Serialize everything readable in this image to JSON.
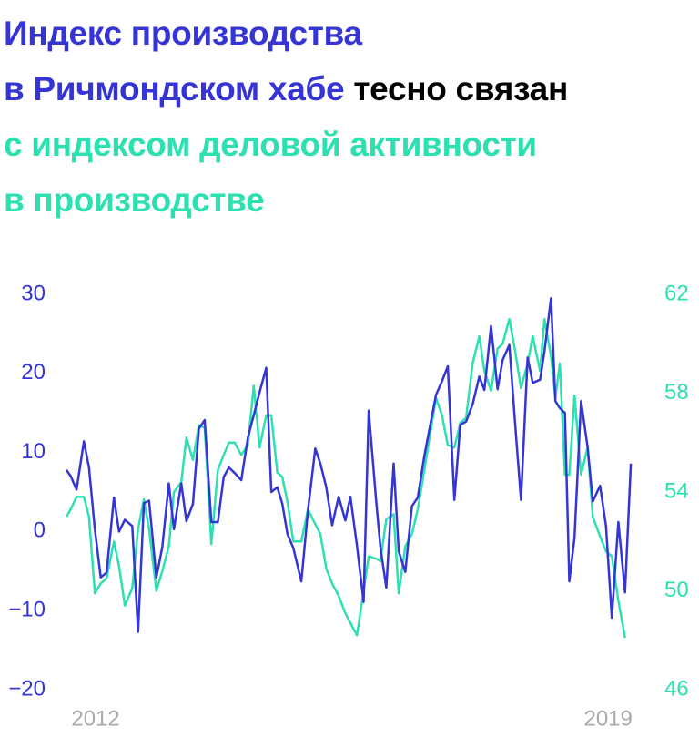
{
  "chart_data": {
    "type": "line",
    "title_lines": [
      [
        {
          "text": "Индекс производства",
          "color": "#3535d5"
        }
      ],
      [
        {
          "text": "в Ричмондском хабе",
          "color": "#3535d5"
        },
        {
          "text": "тесно связан",
          "color": "#000000"
        }
      ],
      [
        {
          "text": "с индексом деловой активности",
          "color": "#2de0b0"
        }
      ],
      [
        {
          "text": "в производстве",
          "color": "#2de0b0"
        }
      ]
    ],
    "x": [
      2011.6,
      2011.66,
      2011.74,
      2011.84,
      2011.91,
      2011.99,
      2012.07,
      2012.15,
      2012.25,
      2012.32,
      2012.4,
      2012.5,
      2012.58,
      2012.66,
      2012.73,
      2012.83,
      2012.91,
      2013.0,
      2013.07,
      2013.17,
      2013.24,
      2013.33,
      2013.41,
      2013.49,
      2013.58,
      2013.67,
      2013.75,
      2013.82,
      2013.9,
      2013.99,
      2014.08,
      2014.16,
      2014.24,
      2014.33,
      2014.4,
      2014.48,
      2014.55,
      2014.62,
      2014.7,
      2014.81,
      2014.9,
      2015.0,
      2015.07,
      2015.15,
      2015.23,
      2015.32,
      2015.41,
      2015.48,
      2015.57,
      2015.66,
      2015.73,
      2015.83,
      2015.89,
      2015.97,
      2016.07,
      2016.14,
      2016.23,
      2016.32,
      2016.4,
      2016.49,
      2016.56,
      2016.65,
      2016.73,
      2016.81,
      2016.9,
      2016.98,
      2017.06,
      2017.15,
      2017.24,
      2017.31,
      2017.4,
      2017.49,
      2017.56,
      2017.65,
      2017.73,
      2017.81,
      2017.9,
      2017.97,
      2018.07,
      2018.13,
      2018.22,
      2018.28,
      2018.34,
      2018.41,
      2018.47,
      2018.54,
      2018.63,
      2018.72,
      2018.79,
      2018.89,
      2018.97,
      2019.05,
      2019.14,
      2019.23,
      2019.31
    ],
    "series": [
      {
        "color": "#3535d5",
        "axis": "y",
        "values": [
          7.8,
          7.0,
          5.3,
          11.4,
          8.1,
          0.3,
          -5.8,
          -5.2,
          4.3,
          0,
          1.5,
          0.7,
          -12.7,
          3.6,
          3.9,
          -5.8,
          -2.0,
          6.1,
          0.3,
          6.1,
          1.3,
          3.5,
          13.0,
          14.1,
          1.2,
          1.2,
          6.9,
          8.1,
          7.4,
          6.5,
          11.9,
          14.7,
          17.6,
          20.7,
          5.0,
          5.6,
          3.5,
          -0.3,
          -2.1,
          -6.3,
          2.6,
          10.5,
          8.6,
          5.6,
          0.8,
          4.4,
          1.4,
          4.4,
          -1.8,
          -8.9,
          15.3,
          4.0,
          -2.0,
          -7.1,
          8.6,
          -2.5,
          -5.1,
          3.2,
          4.3,
          9.6,
          13.0,
          17.3,
          19.0,
          20.9,
          4.0,
          13.5,
          13.9,
          16.1,
          19.6,
          17.9,
          26.0,
          18.0,
          21.7,
          23.6,
          13.6,
          4.0,
          22.0,
          18.8,
          19.2,
          22.8,
          29.5,
          16.5,
          15.6,
          15.0,
          -6.3,
          -0.8,
          16.5,
          10.7,
          3.8,
          5.8,
          0.7,
          -10.9,
          1.2,
          -7.7,
          8.6
        ]
      },
      {
        "color": "#2de0b0",
        "axis": "y2",
        "values": [
          53.0,
          53.3,
          53.8,
          53.8,
          53.0,
          49.9,
          50.3,
          50.5,
          52.0,
          51.0,
          49.4,
          50.1,
          52.5,
          53.7,
          52.5,
          50.0,
          50.8,
          51.8,
          54.0,
          54.4,
          56.2,
          55.3,
          56.7,
          56.6,
          51.9,
          54.9,
          55.5,
          56.0,
          56.0,
          55.5,
          55.9,
          58.3,
          55.8,
          57.1,
          57.1,
          54.8,
          54.6,
          53.6,
          52.0,
          52.0,
          53.3,
          52.7,
          52.3,
          50.9,
          50.3,
          49.8,
          49.1,
          48.7,
          48.2,
          50.0,
          51.4,
          51.3,
          51.2,
          52.9,
          53.1,
          49.9,
          51.8,
          52.3,
          53.3,
          54.9,
          56.2,
          57.8,
          57.1,
          55.9,
          55.8,
          56.8,
          57.0,
          59.2,
          60.3,
          58.9,
          58.1,
          59.8,
          60.0,
          61.0,
          59.7,
          58.2,
          59.2,
          60.3,
          58.9,
          61.0,
          59.5,
          57.8,
          59.2,
          54.7,
          54.7,
          57.9,
          54.7,
          55.8,
          53.0,
          52.2,
          51.6,
          51.4,
          49.6,
          48.1,
          null
        ]
      }
    ],
    "xlim": [
      2011.44,
      2019.52
    ],
    "xticks": [
      2012,
      2019
    ],
    "ylim": [
      -20,
      30
    ],
    "yticks": [
      {
        "value": -20,
        "label": "−20"
      },
      {
        "value": -10,
        "label": "−10"
      },
      0,
      10,
      20,
      30
    ],
    "y2lim": [
      46,
      62
    ],
    "y2ticks": [
      46,
      50,
      54,
      58,
      62
    ],
    "grid": false
  }
}
